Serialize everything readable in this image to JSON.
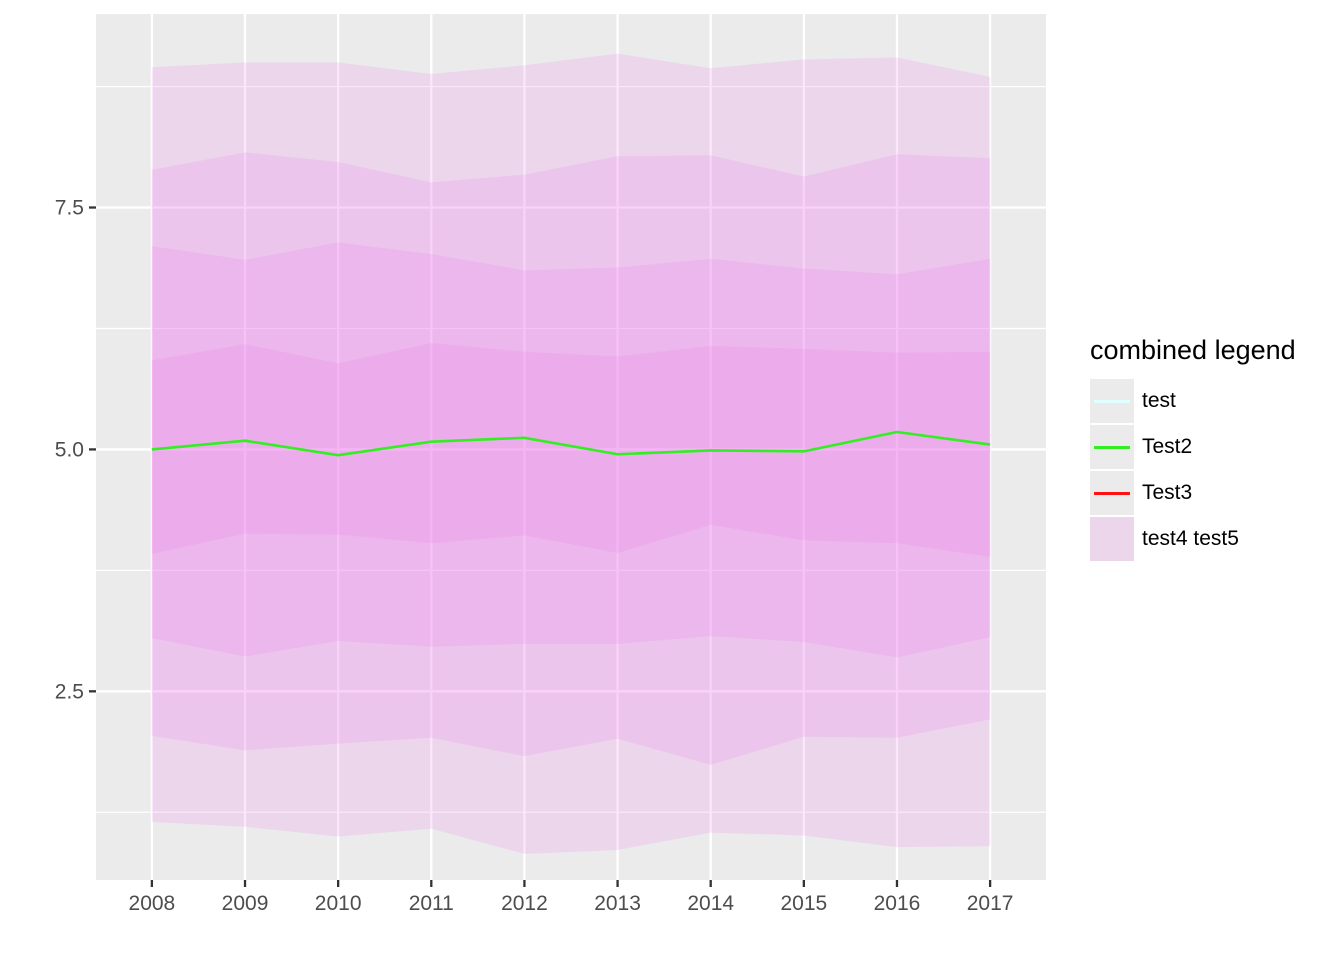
{
  "chart_data": {
    "type": "area",
    "x": [
      2008,
      2009,
      2010,
      2011,
      2012,
      2013,
      2014,
      2015,
      2016,
      2017
    ],
    "x_tick_labels": [
      "2008",
      "2009",
      "2010",
      "2011",
      "2012",
      "2013",
      "2014",
      "2015",
      "2016",
      "2017"
    ],
    "y_tick_labels": [
      "2.5",
      "5.0",
      "7.5"
    ],
    "y_ticks": [
      2.5,
      5.0,
      7.5
    ],
    "xlim": [
      2007.4,
      2017.6
    ],
    "ylim": [
      0.55,
      9.5
    ],
    "grid": true,
    "line_series": [
      {
        "name": "Test2",
        "color": "#33ee22",
        "values": [
          5.0,
          5.09,
          4.94,
          5.08,
          5.12,
          4.95,
          4.99,
          4.98,
          5.18,
          5.05
        ]
      }
    ],
    "ribbons": [
      {
        "lower": [
          1.15,
          1.1,
          1.0,
          1.08,
          0.82,
          0.86,
          1.04,
          1.01,
          0.89,
          0.9
        ],
        "upper": [
          8.95,
          9.0,
          9.0,
          8.88,
          8.97,
          9.09,
          8.94,
          9.03,
          9.05,
          8.85
        ]
      },
      {
        "lower": [
          2.04,
          1.89,
          1.96,
          2.02,
          1.83,
          2.01,
          1.74,
          2.03,
          2.02,
          2.21
        ],
        "upper": [
          7.89,
          8.07,
          7.97,
          7.76,
          7.84,
          8.03,
          8.04,
          7.82,
          8.05,
          8.01
        ]
      },
      {
        "lower": [
          3.05,
          2.86,
          3.02,
          2.96,
          2.99,
          2.99,
          3.07,
          3.01,
          2.85,
          3.06
        ],
        "upper": [
          7.1,
          6.96,
          7.14,
          7.02,
          6.85,
          6.88,
          6.97,
          6.87,
          6.81,
          6.97
        ]
      },
      {
        "lower": [
          3.92,
          4.13,
          4.12,
          4.03,
          4.11,
          3.93,
          4.22,
          4.06,
          4.03,
          3.89
        ],
        "upper": [
          5.92,
          6.09,
          5.89,
          6.1,
          6.01,
          5.96,
          6.07,
          6.04,
          6.0,
          6.01
        ]
      }
    ],
    "ribbon_color": "#ee82ee",
    "legend": {
      "title": "combined legend",
      "position": "right",
      "items": [
        {
          "label": "test",
          "kind": "line",
          "color": "#e0ffff"
        },
        {
          "label": "Test2",
          "kind": "line",
          "color": "#33ee22"
        },
        {
          "label": "Test3",
          "kind": "line",
          "color": "#ff1111"
        },
        {
          "label": "test4 test5",
          "kind": "fill",
          "color": "#ee82ee"
        }
      ]
    }
  }
}
